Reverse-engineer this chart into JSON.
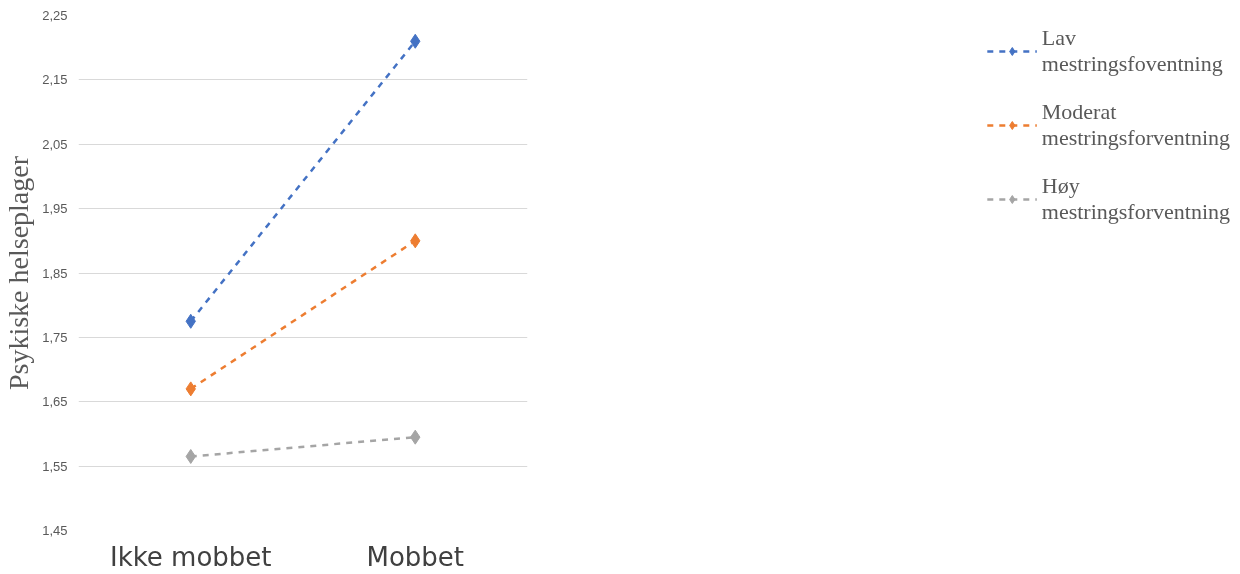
{
  "chart_data": {
    "type": "line",
    "ylabel": "Psykiske helseplager",
    "categories": [
      "Ikke mobbet",
      "Mobbet"
    ],
    "series": [
      {
        "name": "Lav\nmestringsfoventning",
        "color": "#4472c4",
        "values": [
          1.775,
          2.21
        ]
      },
      {
        "name": "Moderat\nmestringsforventning",
        "color": "#ed7d31",
        "values": [
          1.67,
          1.9
        ]
      },
      {
        "name": "Høy\nmestringsforventning",
        "color": "#a5a5a5",
        "values": [
          1.565,
          1.595
        ]
      }
    ],
    "ylim": [
      1.45,
      2.25
    ],
    "yticks": [
      {
        "value": 1.45,
        "label": "1,45"
      },
      {
        "value": 1.55,
        "label": "1,55"
      },
      {
        "value": 1.65,
        "label": "1,65"
      },
      {
        "value": 1.75,
        "label": "1,75"
      },
      {
        "value": 1.85,
        "label": "1,85"
      },
      {
        "value": 1.95,
        "label": "1,95"
      },
      {
        "value": 2.05,
        "label": "2,05"
      },
      {
        "value": 2.15,
        "label": "2,15"
      },
      {
        "value": 2.25,
        "label": "2,25"
      }
    ],
    "grid": "y",
    "legend": "right",
    "marker": "diamond",
    "line_style": "dashed"
  }
}
